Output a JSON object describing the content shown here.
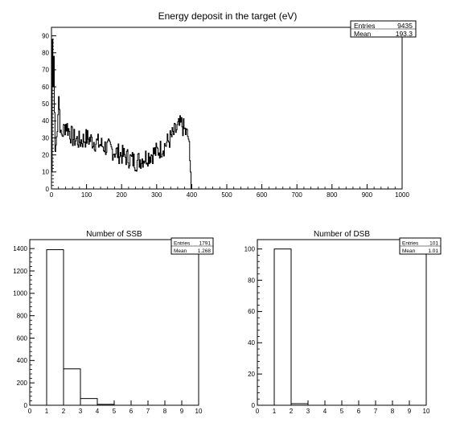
{
  "chart_data": [
    {
      "type": "line",
      "title": "Energy deposit in the target (eV)",
      "xlim": [
        0,
        1000
      ],
      "ylim": [
        0,
        95
      ],
      "x_ticks": [
        0,
        100,
        200,
        300,
        400,
        500,
        600,
        700,
        800,
        900,
        1000
      ],
      "y_ticks": [
        0,
        10,
        20,
        30,
        40,
        50,
        60,
        70,
        80,
        90
      ],
      "stats": {
        "entries_label": "Entries",
        "entries": "9435",
        "mean_label": "Mean",
        "mean": "193.3"
      },
      "bin_width": 2,
      "anchors": [
        [
          0,
          10
        ],
        [
          2,
          88
        ],
        [
          4,
          60
        ],
        [
          6,
          78
        ],
        [
          8,
          45
        ],
        [
          10,
          22
        ],
        [
          14,
          30
        ],
        [
          20,
          55
        ],
        [
          26,
          30
        ],
        [
          40,
          38
        ],
        [
          60,
          30
        ],
        [
          80,
          28
        ],
        [
          100,
          30
        ],
        [
          120,
          28
        ],
        [
          140,
          26
        ],
        [
          160,
          24
        ],
        [
          180,
          22
        ],
        [
          200,
          20
        ],
        [
          220,
          18
        ],
        [
          240,
          16
        ],
        [
          260,
          18
        ],
        [
          280,
          20
        ],
        [
          300,
          22
        ],
        [
          320,
          25
        ],
        [
          340,
          30
        ],
        [
          360,
          36
        ],
        [
          370,
          38
        ],
        [
          380,
          34
        ],
        [
          390,
          30
        ],
        [
          396,
          10
        ],
        [
          398,
          0
        ],
        [
          1000,
          0
        ]
      ],
      "jitter": 6
    },
    {
      "type": "bar",
      "title": "Number of SSB",
      "bin_edges": [
        1,
        2,
        3,
        4,
        5
      ],
      "values": [
        1390,
        325,
        60,
        8
      ],
      "xlim": [
        0,
        10
      ],
      "ylim": [
        0,
        1480
      ],
      "x_ticks": [
        0,
        1,
        2,
        3,
        4,
        5,
        6,
        7,
        8,
        9,
        10
      ],
      "y_ticks": [
        0,
        200,
        400,
        600,
        800,
        1000,
        1200,
        1400
      ],
      "stats": {
        "entries_label": "Entries",
        "entries": "1791",
        "mean_label": "Mean",
        "mean": "1.268"
      }
    },
    {
      "type": "bar",
      "title": "Number of DSB",
      "bin_edges": [
        1,
        2,
        3
      ],
      "values": [
        100,
        1
      ],
      "xlim": [
        0,
        10
      ],
      "ylim": [
        0,
        106
      ],
      "x_ticks": [
        0,
        1,
        2,
        3,
        4,
        5,
        6,
        7,
        8,
        9,
        10
      ],
      "y_ticks": [
        0,
        20,
        40,
        60,
        80,
        100
      ],
      "stats": {
        "entries_label": "Entries",
        "entries": "101",
        "mean_label": "Mean",
        "mean": "1.01"
      }
    }
  ]
}
